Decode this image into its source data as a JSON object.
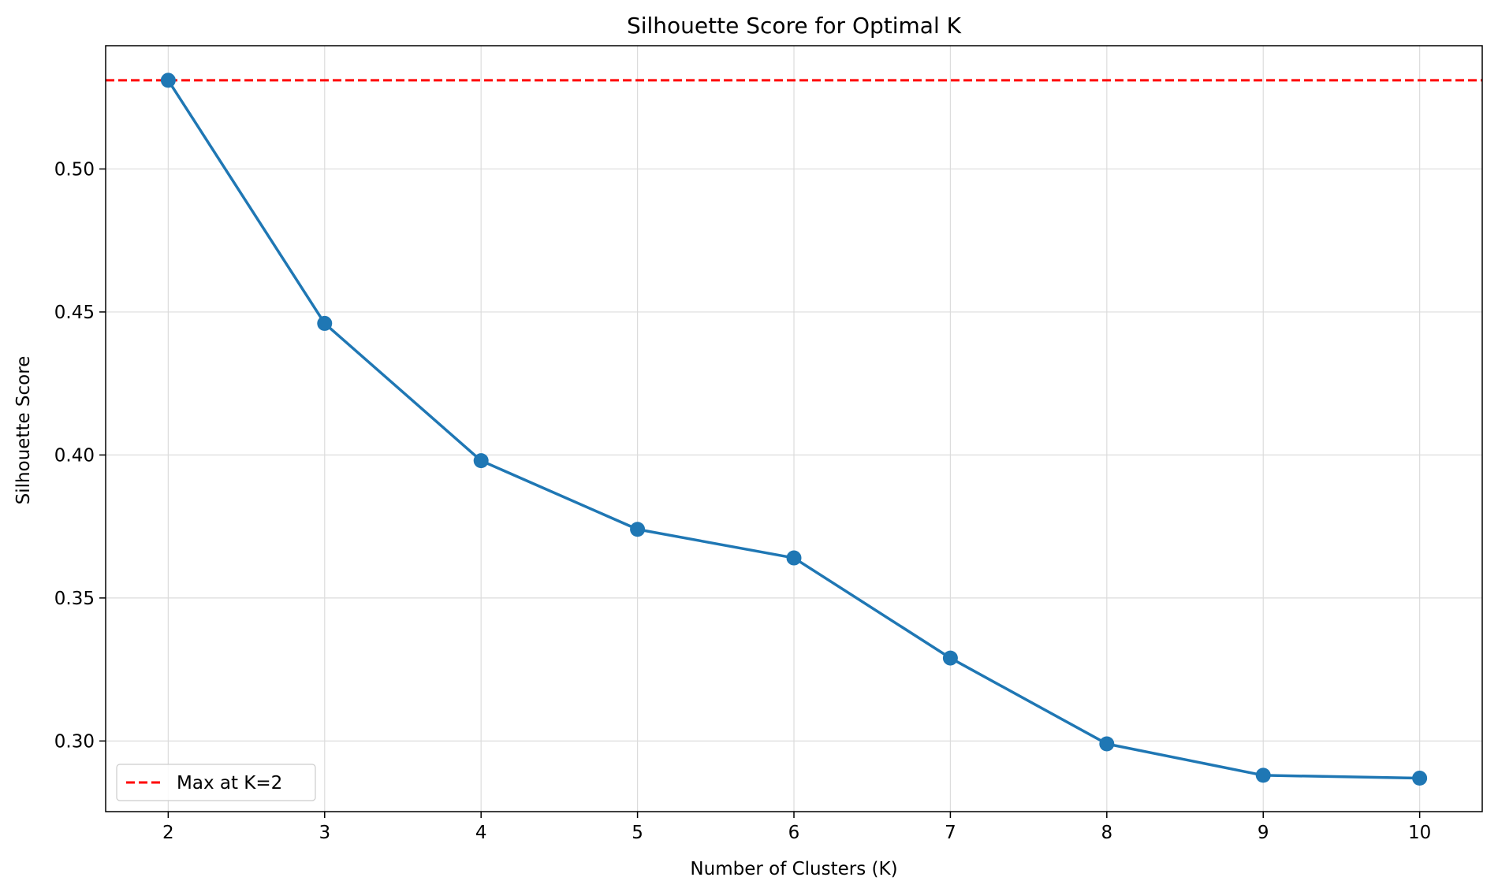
{
  "chart_data": {
    "type": "line",
    "title": "Silhouette Score for Optimal K",
    "xlabel": "Number of Clusters (K)",
    "ylabel": "Silhouette Score",
    "x": [
      2,
      3,
      4,
      5,
      6,
      7,
      8,
      9,
      10
    ],
    "series": [
      {
        "values": [
          0.531,
          0.446,
          0.398,
          0.374,
          0.364,
          0.329,
          0.299,
          0.288,
          0.287
        ],
        "color": "#1f77b4",
        "marker": "circle"
      }
    ],
    "reference_lines": [
      {
        "orientation": "horizontal",
        "y": 0.531,
        "style": "dashed",
        "color": "#ff0000",
        "label": "Max at K=2"
      }
    ],
    "xticks": [
      "2",
      "3",
      "4",
      "5",
      "6",
      "7",
      "8",
      "9",
      "10"
    ],
    "yticks": [
      "0.30",
      "0.35",
      "0.40",
      "0.45",
      "0.50"
    ],
    "xlim": [
      1.6,
      10.4
    ],
    "ylim": [
      0.2753,
      0.5431
    ],
    "grid": true,
    "legend_position": "lower-left"
  }
}
